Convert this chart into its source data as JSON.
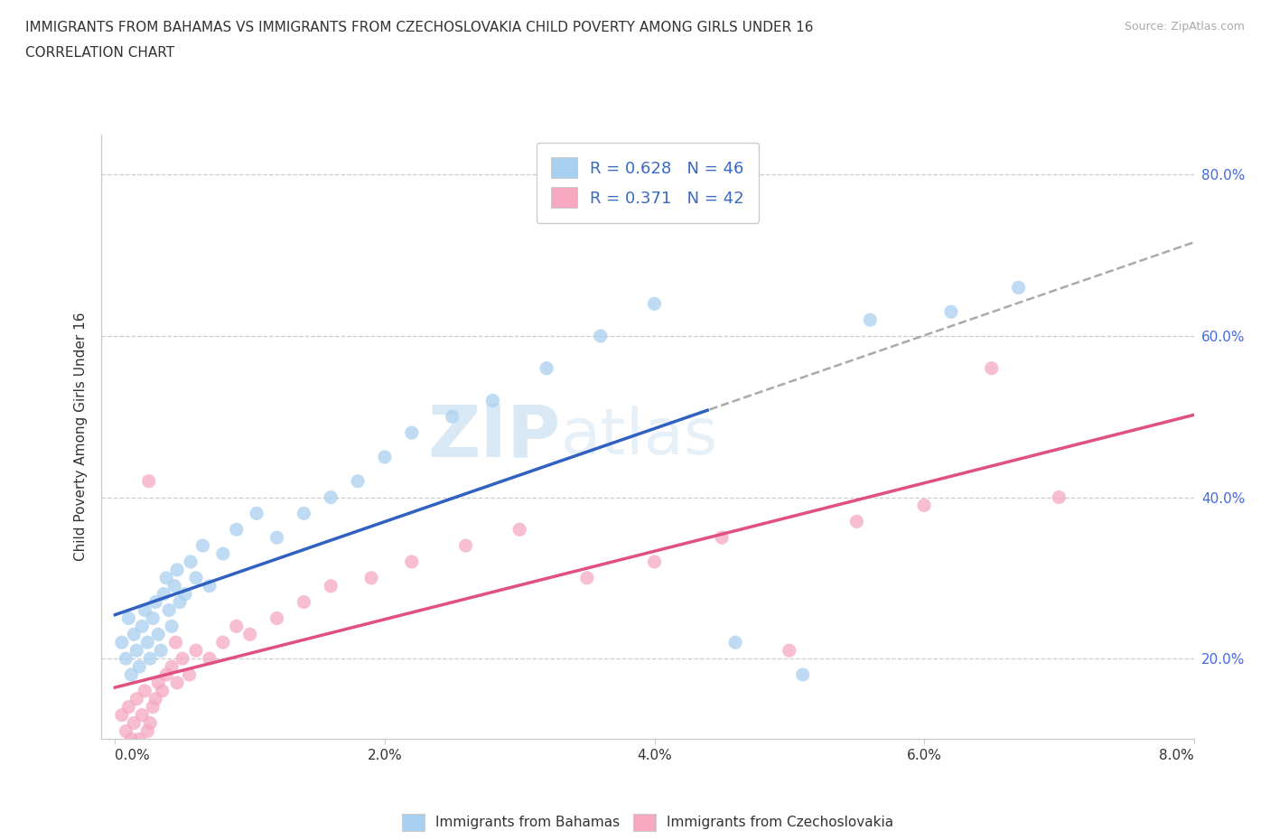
{
  "title_line1": "IMMIGRANTS FROM BAHAMAS VS IMMIGRANTS FROM CZECHOSLOVAKIA CHILD POVERTY AMONG GIRLS UNDER 16",
  "title_line2": "CORRELATION CHART",
  "source": "Source: ZipAtlas.com",
  "ylabel": "Child Poverty Among Girls Under 16",
  "xticks": [
    0.0,
    2.0,
    4.0,
    6.0,
    8.0
  ],
  "xticklabels": [
    "0.0%",
    "2.0%",
    "4.0%",
    "6.0%",
    "8.0%"
  ],
  "yticks": [
    20.0,
    40.0,
    60.0,
    80.0
  ],
  "yticklabels": [
    "20.0%",
    "40.0%",
    "60.0%",
    "80.0%"
  ],
  "xmin": -0.1,
  "xmax": 8.0,
  "ymin": 10.0,
  "ymax": 85.0,
  "R_bahamas": 0.628,
  "N_bahamas": 46,
  "R_czech": 0.371,
  "N_czech": 42,
  "color_bahamas": "#a8d0f0",
  "color_czech": "#f5a8c0",
  "line_color_bahamas": "#3060c0",
  "line_color_czech": "#e05080",
  "dash_color": "#aaaaaa",
  "watermark_color": "#d0e8f5",
  "bahamas_x": [
    0.05,
    0.08,
    0.1,
    0.12,
    0.14,
    0.16,
    0.18,
    0.2,
    0.22,
    0.24,
    0.26,
    0.28,
    0.3,
    0.32,
    0.34,
    0.36,
    0.38,
    0.4,
    0.42,
    0.44,
    0.46,
    0.48,
    0.52,
    0.56,
    0.6,
    0.65,
    0.7,
    0.8,
    0.9,
    1.05,
    1.2,
    1.4,
    1.6,
    1.8,
    2.0,
    2.2,
    2.5,
    2.8,
    3.2,
    3.6,
    4.0,
    4.6,
    5.1,
    5.6,
    6.2,
    6.7
  ],
  "bahamas_y": [
    22,
    20,
    25,
    18,
    23,
    21,
    19,
    24,
    26,
    22,
    20,
    25,
    27,
    23,
    21,
    28,
    30,
    26,
    24,
    29,
    31,
    27,
    28,
    32,
    30,
    34,
    29,
    33,
    36,
    38,
    35,
    38,
    40,
    42,
    45,
    48,
    50,
    52,
    56,
    60,
    64,
    22,
    18,
    62,
    63,
    66
  ],
  "czech_x": [
    0.05,
    0.08,
    0.1,
    0.12,
    0.14,
    0.16,
    0.18,
    0.2,
    0.22,
    0.24,
    0.26,
    0.28,
    0.3,
    0.32,
    0.35,
    0.38,
    0.42,
    0.46,
    0.5,
    0.55,
    0.6,
    0.7,
    0.8,
    0.9,
    1.0,
    1.2,
    1.4,
    1.6,
    1.9,
    2.2,
    2.6,
    3.0,
    3.5,
    4.0,
    4.5,
    5.0,
    5.5,
    6.0,
    6.5,
    7.0,
    0.25,
    0.45
  ],
  "czech_y": [
    13,
    11,
    14,
    10,
    12,
    15,
    10,
    13,
    16,
    11,
    12,
    14,
    15,
    17,
    16,
    18,
    19,
    17,
    20,
    18,
    21,
    20,
    22,
    24,
    23,
    25,
    27,
    29,
    30,
    32,
    34,
    36,
    30,
    32,
    35,
    21,
    37,
    39,
    56,
    40,
    42,
    22
  ]
}
